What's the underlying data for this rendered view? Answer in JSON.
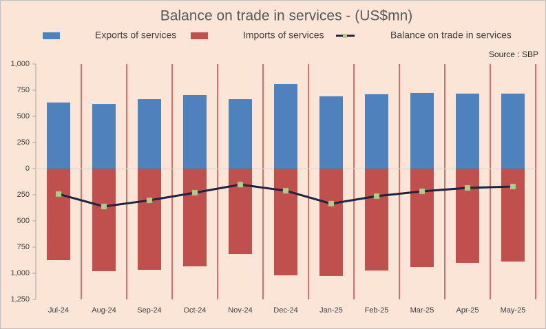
{
  "chart_data": {
    "type": "bar",
    "title": "Balance on trade in services  - (US$mn)",
    "source": "Source : SBP",
    "categories": [
      "Jul-24",
      "Aug-24",
      "Sep-24",
      "Oct-24",
      "Nov-24",
      "Dec-24",
      "Jan-25",
      "Feb-25",
      "Mar-25",
      "Apr-25",
      "May-25"
    ],
    "series": [
      {
        "name": "Exports of services",
        "type": "bar",
        "color": "#4f81bd",
        "values": [
          632,
          618,
          664,
          704,
          664,
          809,
          691,
          711,
          724,
          717,
          717
        ]
      },
      {
        "name": "Imports of services",
        "type": "bar",
        "color": "#c0504d",
        "values": [
          -875,
          -980,
          -967,
          -934,
          -816,
          -1020,
          -1026,
          -974,
          -941,
          -901,
          -888
        ]
      },
      {
        "name": "Balance on trade in services",
        "type": "line",
        "color": "#1f2340",
        "marker_color": "#b9c98c",
        "values": [
          -243,
          -362,
          -303,
          -230,
          -152,
          -211,
          -335,
          -263,
          -217,
          -184,
          -171
        ]
      }
    ],
    "ylim": [
      -1250,
      1000
    ],
    "yticks": [
      {
        "value": 1000,
        "label": "1,000"
      },
      750,
      500,
      250,
      0,
      {
        "value": -250,
        "label": "250"
      },
      {
        "value": -500,
        "label": "500"
      },
      {
        "value": -750,
        "label": "750"
      },
      {
        "value": -1000,
        "label": "1,000"
      },
      {
        "value": -1250,
        "label": "1,250"
      }
    ],
    "grid": false
  }
}
